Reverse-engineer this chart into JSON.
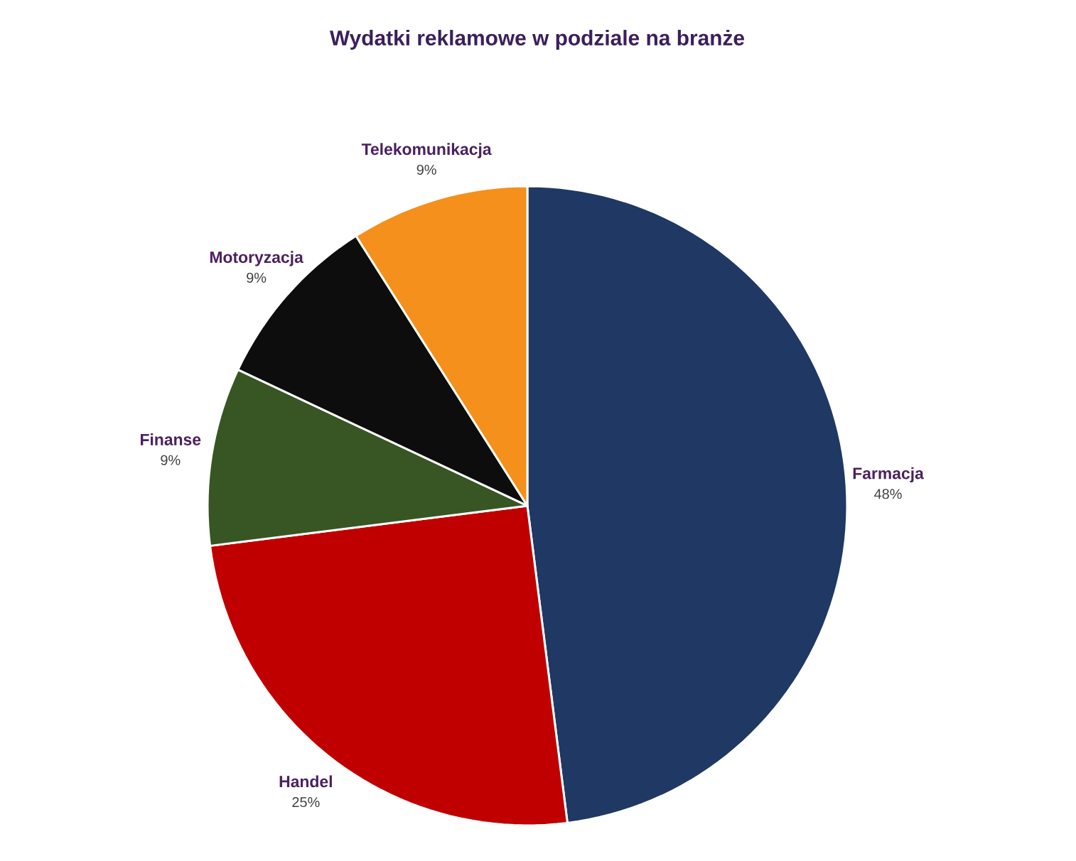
{
  "chart_data": {
    "type": "pie",
    "title": "Wydatki reklamowe w podziale na branże",
    "categories": [
      "Farmacja",
      "Handel",
      "Finanse",
      "Motoryzacja",
      "Telekomunikacja"
    ],
    "values": [
      48,
      25,
      9,
      9,
      9
    ],
    "value_labels": [
      "48%",
      "25%",
      "9%",
      "9%",
      "9%"
    ],
    "colors": [
      "#1f3864",
      "#c00000",
      "#375623",
      "#0d0d0d",
      "#f4901b"
    ]
  }
}
